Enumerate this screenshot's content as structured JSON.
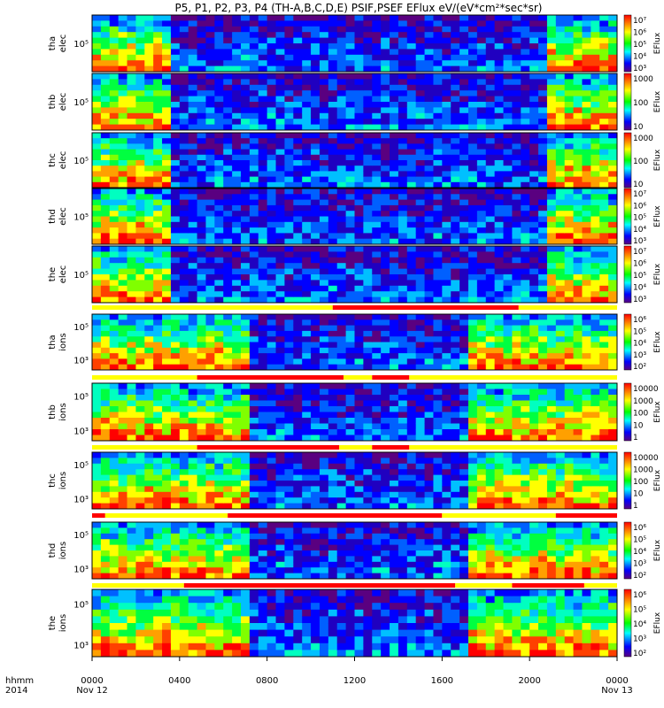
{
  "chart_data": {
    "type": "heatmap",
    "title": "P5, P1, P2, P3, P4 (TH-A,B,C,D,E) PSIF,PSEF EFlux eV/(eV*cm²*sec*sr)",
    "x_axis": {
      "row_label": "hhmm",
      "year_label": "2014",
      "ticks": [
        "0000",
        "0400",
        "0800",
        "1200",
        "1600",
        "2000",
        "0000"
      ],
      "date_labels": [
        "Nov 12",
        "Nov 13"
      ],
      "range_hours": [
        0,
        24
      ]
    },
    "colorbar_label": "EFlux",
    "panels": [
      {
        "probe": "tha",
        "species": "elec",
        "ytick": "10⁵",
        "cbar_ticks": [
          "10⁷",
          "10⁶",
          "10⁵",
          "10⁴",
          "10³"
        ]
      },
      {
        "probe": "thb",
        "species": "elec",
        "ytick": "10⁵",
        "cbar_ticks": [
          "1000",
          "100",
          "10"
        ]
      },
      {
        "probe": "thc",
        "species": "elec",
        "ytick": "10⁵",
        "cbar_ticks": [
          "1000",
          "100",
          "10"
        ]
      },
      {
        "probe": "thd",
        "species": "elec",
        "ytick": "10⁵",
        "cbar_ticks": [
          "10⁷",
          "10⁶",
          "10⁵",
          "10⁴",
          "10³"
        ]
      },
      {
        "probe": "the",
        "species": "elec",
        "ytick": "10⁵",
        "cbar_ticks": [
          "10⁷",
          "10⁶",
          "10⁵",
          "10⁴",
          "10³"
        ]
      },
      {
        "probe": "tha",
        "species": "ions",
        "yticks": [
          "10⁵",
          "10³"
        ],
        "cbar_ticks": [
          "10⁶",
          "10⁵",
          "10⁴",
          "10³",
          "10²"
        ]
      },
      {
        "probe": "thb",
        "species": "ions",
        "yticks": [
          "10⁵",
          "10³"
        ],
        "cbar_ticks": [
          "10000",
          "1000",
          "100",
          "10",
          "1"
        ]
      },
      {
        "probe": "thc",
        "species": "ions",
        "yticks": [
          "10⁵",
          "10³"
        ],
        "cbar_ticks": [
          "10000",
          "1000",
          "100",
          "10",
          "1"
        ]
      },
      {
        "probe": "thd",
        "species": "ions",
        "yticks": [
          "10⁵",
          "10³"
        ],
        "cbar_ticks": [
          "10⁶",
          "10⁵",
          "10⁴",
          "10³",
          "10²"
        ]
      },
      {
        "probe": "the",
        "species": "ions",
        "yticks": [
          "10⁵",
          "10³"
        ],
        "cbar_ticks": [
          "10⁶",
          "10⁵",
          "10⁴",
          "10³",
          "10²"
        ]
      }
    ],
    "mode_bar_colors": {
      "slow": "#ffff00",
      "fast": "#ff0000"
    }
  }
}
